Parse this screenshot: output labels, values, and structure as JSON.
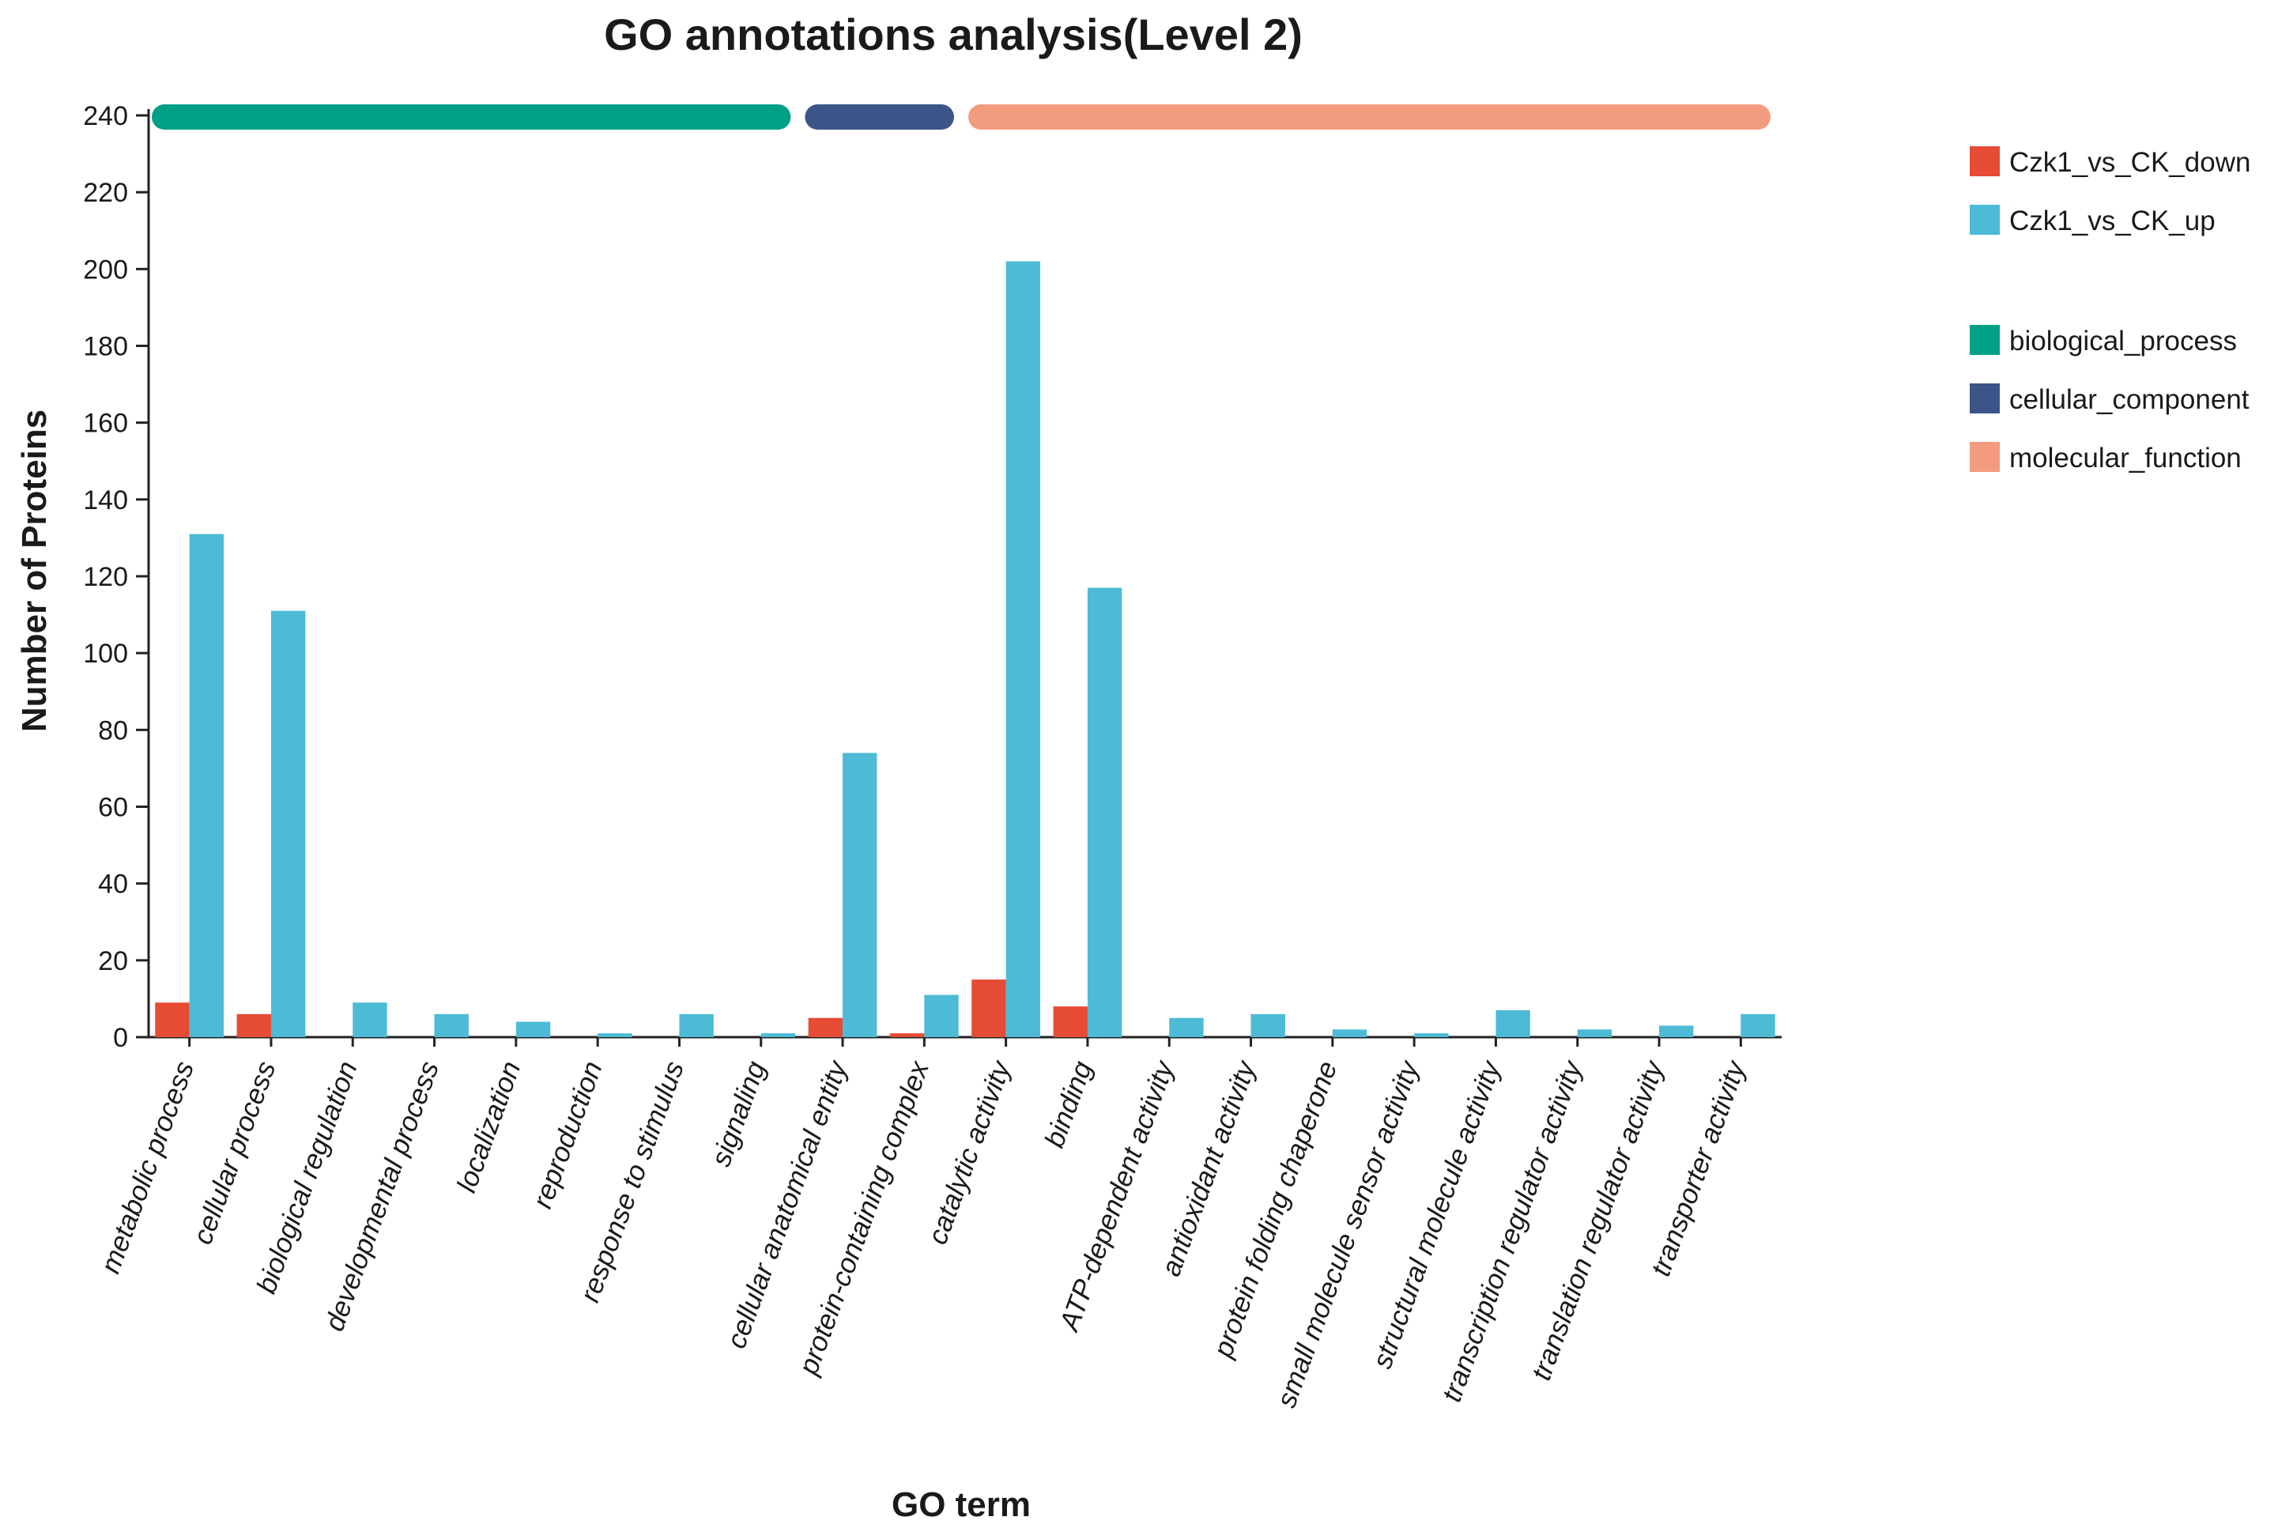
{
  "chart_data": {
    "type": "bar",
    "title": "GO annotations analysis(Level 2)",
    "xlabel": "GO term",
    "ylabel": "Number of Proteins",
    "ylim": [
      0,
      240
    ],
    "yticks": [
      "0",
      "20",
      "40",
      "60",
      "80",
      "100",
      "120",
      "140",
      "160",
      "180",
      "200",
      "220",
      "240"
    ],
    "categories": [
      "metabolic process",
      "cellular process",
      "biological regulation",
      "developmental process",
      "localization",
      "reproduction",
      "response to stimulus",
      "signaling",
      "cellular anatomical entity",
      "protein-containing complex",
      "catalytic activity",
      "binding",
      "ATP-dependent activity",
      "antioxidant activity",
      "protein folding chaperone",
      "small molecule sensor activity",
      "structural molecule activity",
      "transcription regulator activity",
      "translation regulator activity",
      "transporter activity"
    ],
    "series": [
      {
        "name": "Czk1_vs_CK_down",
        "color": "#e64b35",
        "values": [
          9,
          6,
          0,
          0,
          0,
          0,
          0,
          0,
          5,
          1,
          15,
          8,
          0,
          0,
          0,
          0,
          0,
          0,
          0,
          0
        ]
      },
      {
        "name": "Czk1_vs_CK_up",
        "color": "#4dbbd5",
        "values": [
          131,
          111,
          9,
          6,
          4,
          1,
          6,
          1,
          74,
          11,
          202,
          117,
          5,
          6,
          2,
          1,
          7,
          2,
          3,
          6
        ]
      }
    ],
    "groups": [
      {
        "name": "biological_process",
        "color": "#00a087",
        "start": 0,
        "end": 7
      },
      {
        "name": "cellular_component",
        "color": "#3c5488",
        "start": 8,
        "end": 9
      },
      {
        "name": "molecular_function",
        "color": "#f39b7f",
        "start": 10,
        "end": 19
      }
    ],
    "legend_position": "right"
  }
}
